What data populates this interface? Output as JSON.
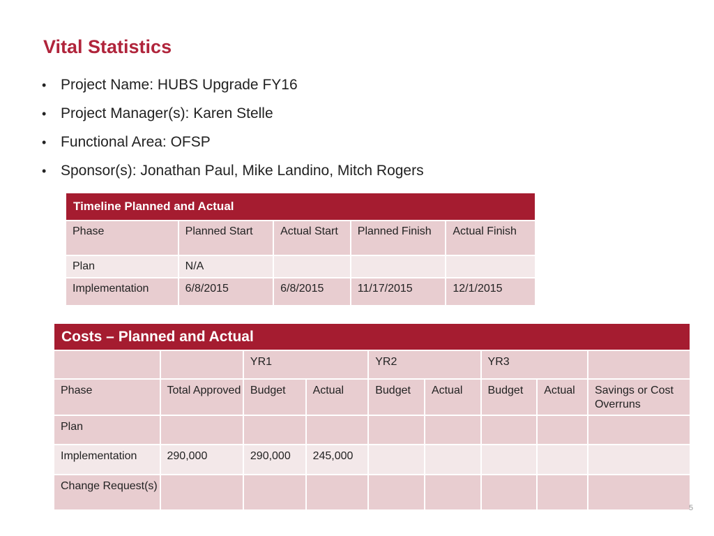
{
  "title": "Vital Statistics",
  "bullets": [
    "Project Name: HUBS Upgrade FY16",
    "Project Manager(s): Karen Stelle",
    "Functional Area: OFSP",
    "Sponsor(s): Jonathan Paul, Mike Landino, Mitch Rogers"
  ],
  "bullet_char": "•",
  "colors": {
    "accent": "#a51c30",
    "title": "#b0243b",
    "cell_dark": "#e8cdd0",
    "cell_light": "#f3e8e9"
  },
  "timeline": {
    "title": "Timeline Planned and Actual",
    "columns": [
      "Phase",
      "Planned Start",
      "Actual Start",
      "Planned Finish",
      "Actual Finish"
    ],
    "rows": [
      [
        "Plan",
        "N/A",
        "",
        "",
        ""
      ],
      [
        "Implementation",
        "6/8/2015",
        "6/8/2015",
        "11/17/2015",
        "12/1/2015"
      ]
    ]
  },
  "costs": {
    "title": "Costs – Planned and Actual",
    "years": [
      "YR1",
      "YR2",
      "YR3"
    ],
    "columns": [
      "Phase",
      "Total Approved",
      "Budget",
      "Actual",
      "Budget",
      "Actual",
      "Budget",
      "Actual",
      "Savings or Cost Overruns"
    ],
    "rows": [
      [
        "Plan",
        "",
        "",
        "",
        "",
        "",
        "",
        "",
        ""
      ],
      [
        "Implementation",
        "290,000",
        "290,000",
        "245,000",
        "",
        "",
        "",
        "",
        ""
      ],
      [
        "Change Request(s)",
        "",
        "",
        "",
        "",
        "",
        "",
        "",
        ""
      ]
    ]
  },
  "page_number": "5"
}
